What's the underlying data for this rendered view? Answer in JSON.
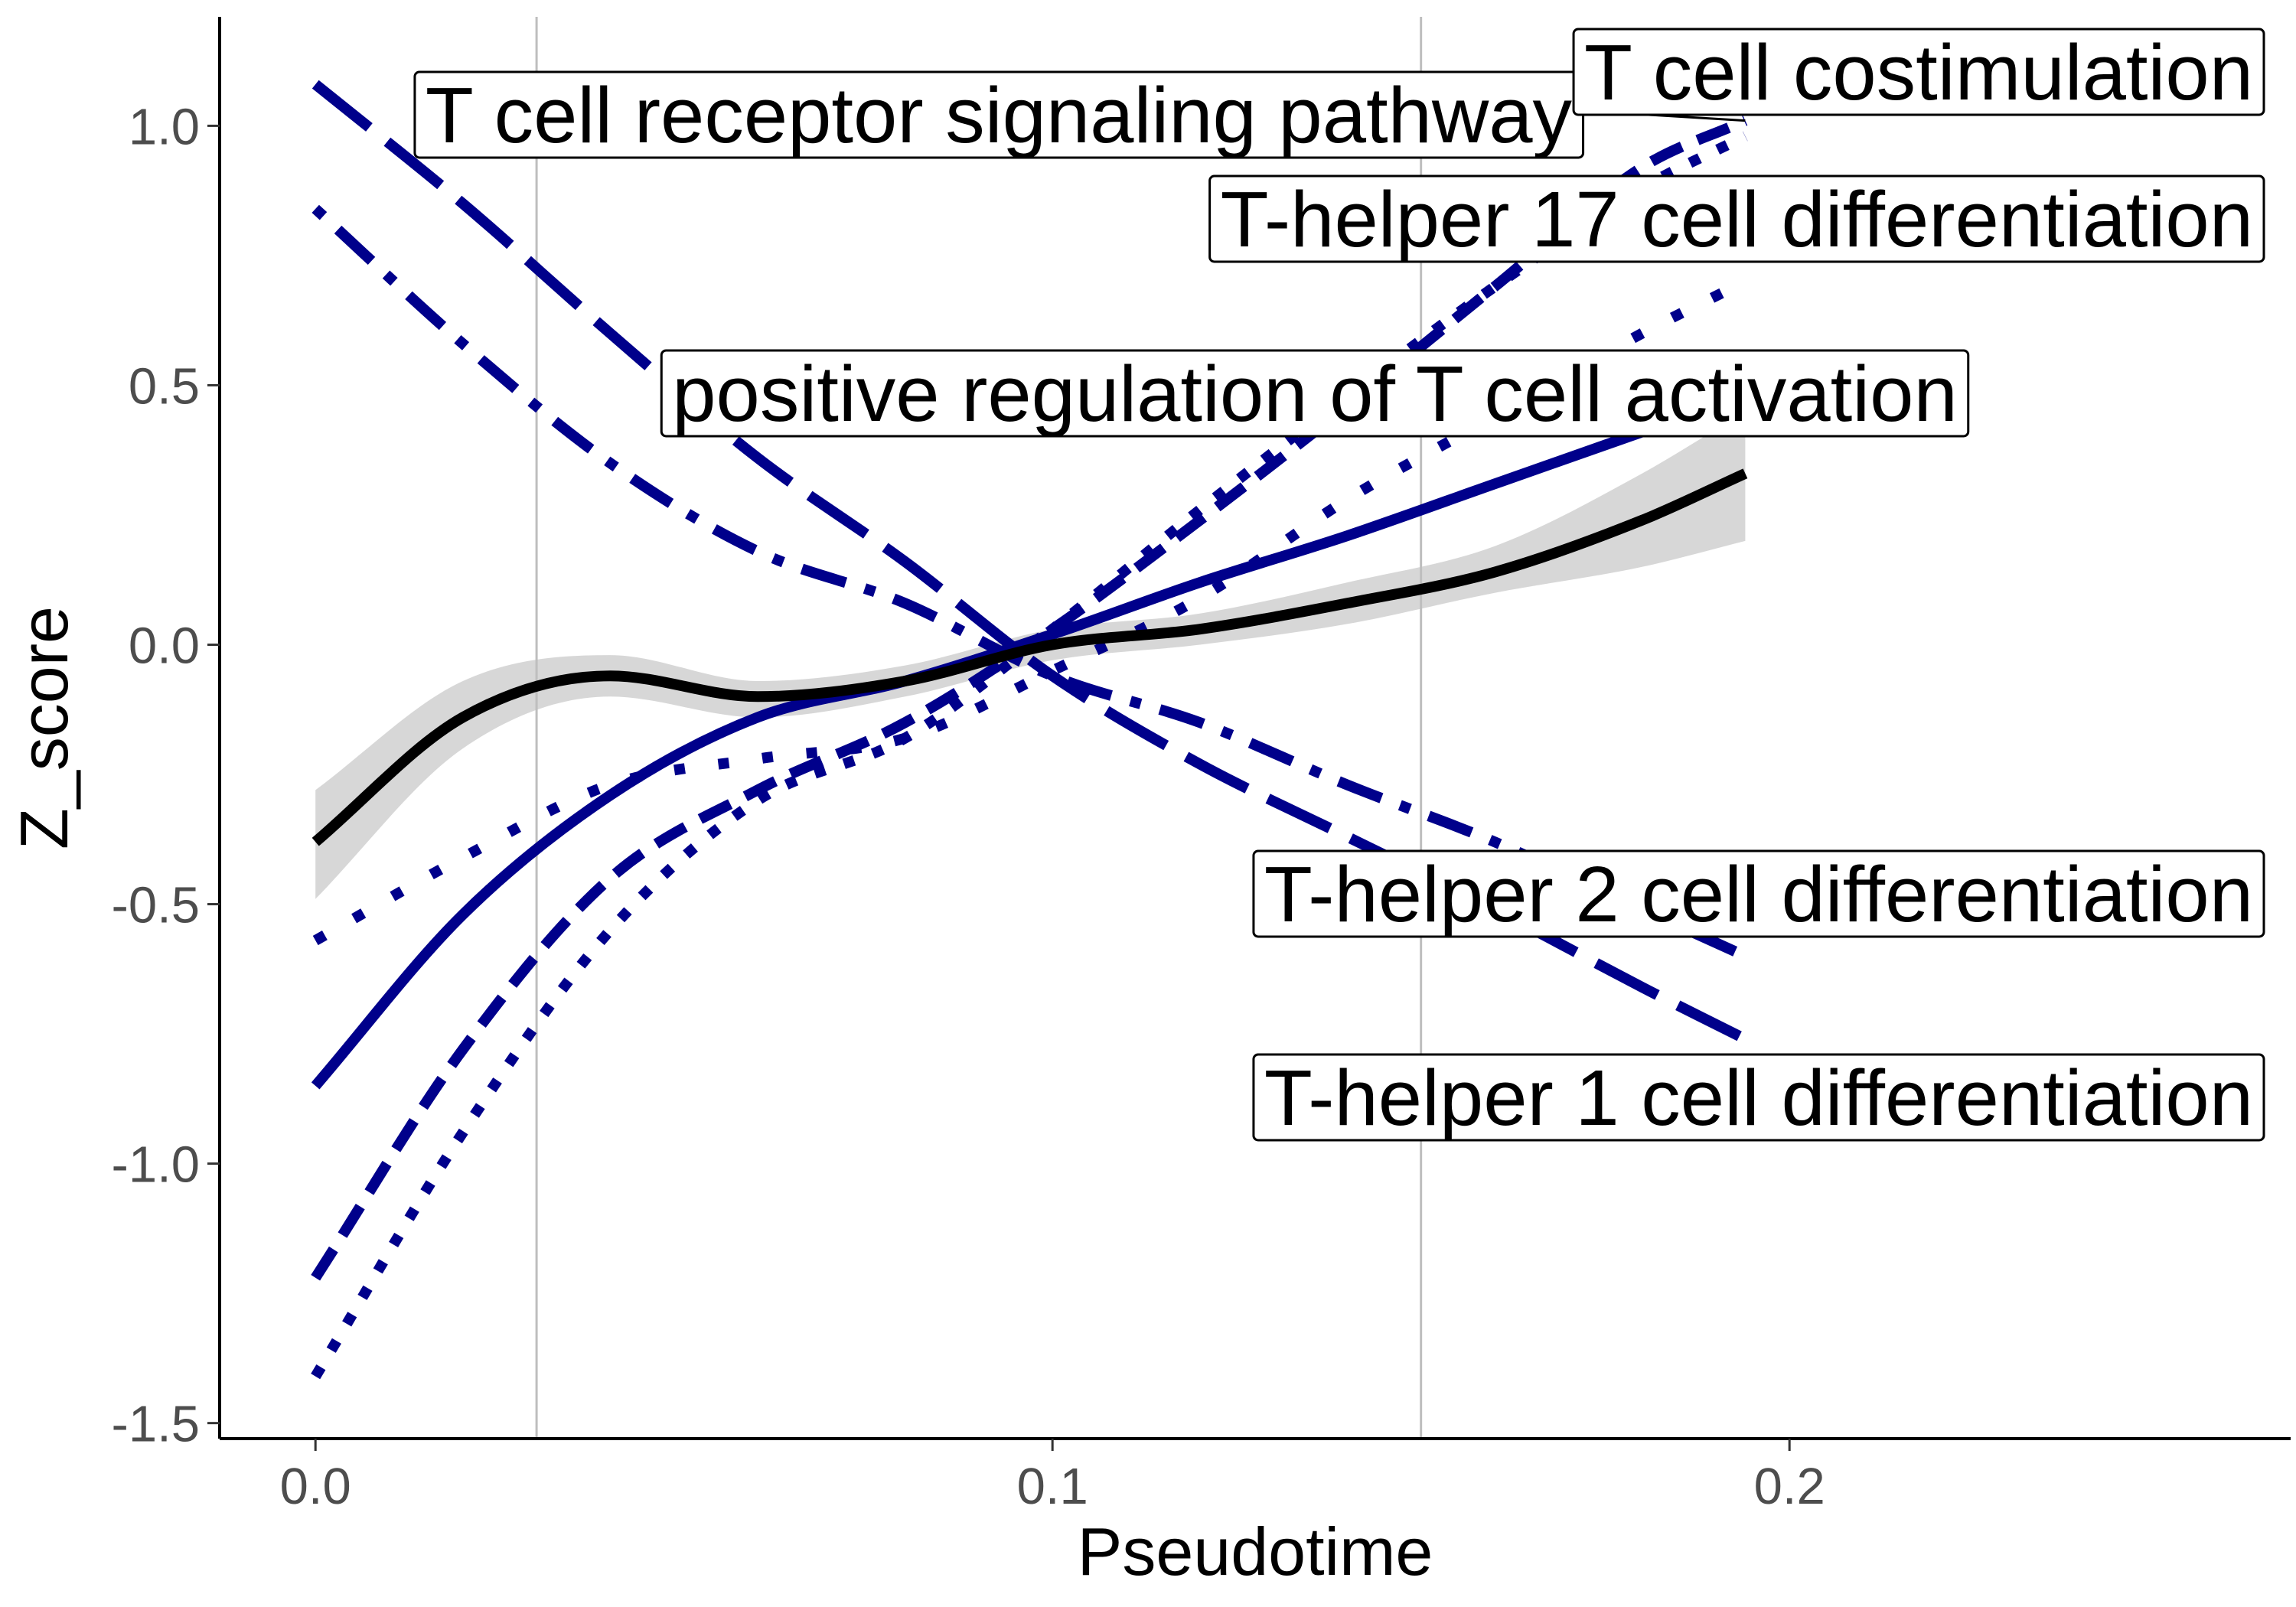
{
  "chart_data": {
    "type": "line",
    "title": "",
    "xlabel": "Pseudotime",
    "ylabel": "Z_score",
    "xlim": [
      -0.013,
      0.268
    ],
    "ylim": [
      -1.53,
      1.21
    ],
    "x_ticks": [
      {
        "value": 0.0,
        "label": "0.0"
      },
      {
        "value": 0.1,
        "label": "0.1"
      },
      {
        "value": 0.2,
        "label": "0.2"
      }
    ],
    "y_ticks": [
      {
        "value": 1.0,
        "label": "1.0"
      },
      {
        "value": 0.5,
        "label": "0.5"
      },
      {
        "value": 0.0,
        "label": "0.0"
      },
      {
        "value": -0.5,
        "label": "-0.5"
      },
      {
        "value": -1.0,
        "label": "-1.0"
      },
      {
        "value": -1.5,
        "label": "-1.5"
      }
    ],
    "vertical_lines": [
      0.03,
      0.15
    ],
    "grid": false,
    "legend": "none",
    "colors": {
      "pathway": "#00008b",
      "overall": "#000000",
      "ribbon": "#d3d3d3",
      "vline": "#bebebe"
    },
    "series": [
      {
        "name": "T cell receptor signaling pathway",
        "dash": "longdash",
        "x": [
          0.0,
          0.02,
          0.04,
          0.06,
          0.08,
          0.1,
          0.12,
          0.14,
          0.16,
          0.18,
          0.194
        ],
        "y": [
          1.08,
          0.85,
          0.6,
          0.36,
          0.16,
          -0.06,
          -0.23,
          -0.37,
          -0.51,
          -0.66,
          -0.76
        ]
      },
      {
        "name": "T cell costimulation",
        "dash": "dashed",
        "x": [
          0.0,
          0.02,
          0.04,
          0.06,
          0.08,
          0.1,
          0.12,
          0.14,
          0.16,
          0.18,
          0.194
        ],
        "y": [
          -1.22,
          -0.78,
          -0.45,
          -0.28,
          -0.15,
          0.03,
          0.24,
          0.46,
          0.69,
          0.92,
          1.01
        ]
      },
      {
        "name": "T-helper 17 cell differentiation",
        "dash": "dotted",
        "x": [
          0.0,
          0.02,
          0.04,
          0.06,
          0.08,
          0.1,
          0.12,
          0.14,
          0.16,
          0.18,
          0.194
        ],
        "y": [
          -1.41,
          -0.94,
          -0.55,
          -0.3,
          -0.18,
          0.03,
          0.26,
          0.48,
          0.69,
          0.88,
          0.98
        ]
      },
      {
        "name": "positive regulation of T cell activation",
        "dash": "solid",
        "x": [
          0.0,
          0.02,
          0.04,
          0.06,
          0.08,
          0.1,
          0.12,
          0.14,
          0.16,
          0.18,
          0.194
        ],
        "y": [
          -0.85,
          -0.52,
          -0.29,
          -0.14,
          -0.07,
          0.02,
          0.12,
          0.21,
          0.31,
          0.41,
          0.48
        ]
      },
      {
        "name": "T-helper 2 cell differentiation",
        "dash": "dotdash",
        "x": [
          0.0,
          0.02,
          0.04,
          0.06,
          0.08,
          0.1,
          0.12,
          0.14,
          0.16,
          0.18,
          0.194
        ],
        "y": [
          0.84,
          0.58,
          0.35,
          0.18,
          0.08,
          -0.06,
          -0.15,
          -0.27,
          -0.38,
          -0.51,
          -0.6
        ]
      },
      {
        "name": "T-helper 1 cell differentiation",
        "dash": "dotted-sparse",
        "x": [
          0.0,
          0.02,
          0.04,
          0.06,
          0.08,
          0.1,
          0.12,
          0.14,
          0.16,
          0.18,
          0.194
        ],
        "y": [
          -0.57,
          -0.41,
          -0.27,
          -0.22,
          -0.18,
          -0.05,
          0.09,
          0.28,
          0.44,
          0.6,
          0.7
        ]
      }
    ],
    "overall_trend": {
      "x": [
        0.0,
        0.02,
        0.04,
        0.06,
        0.08,
        0.1,
        0.12,
        0.14,
        0.16,
        0.18,
        0.194
      ],
      "y": [
        -0.38,
        -0.14,
        -0.06,
        -0.1,
        -0.07,
        0.0,
        0.03,
        0.08,
        0.14,
        0.24,
        0.33
      ],
      "lower": [
        -0.49,
        -0.2,
        -0.1,
        -0.14,
        -0.1,
        -0.03,
        0.0,
        0.04,
        0.1,
        0.15,
        0.2
      ],
      "upper": [
        -0.28,
        -0.07,
        -0.02,
        -0.07,
        -0.04,
        0.03,
        0.06,
        0.12,
        0.19,
        0.33,
        0.45
      ]
    },
    "annotations": [
      {
        "text": "T cell receptor signaling pathway",
        "series": "T cell receptor signaling pathway"
      },
      {
        "text": "T cell costimulation",
        "series": "T cell costimulation"
      },
      {
        "text": "T-helper 17 cell differentiation",
        "series": "T-helper 17 cell differentiation"
      },
      {
        "text": "positive regulation of T cell activation",
        "series": "positive regulation of T cell activation"
      },
      {
        "text": "T-helper 2 cell differentiation",
        "series": "T-helper 2 cell differentiation"
      },
      {
        "text": "T-helper 1 cell differentiation",
        "series": "T-helper 1 cell differentiation"
      }
    ]
  }
}
